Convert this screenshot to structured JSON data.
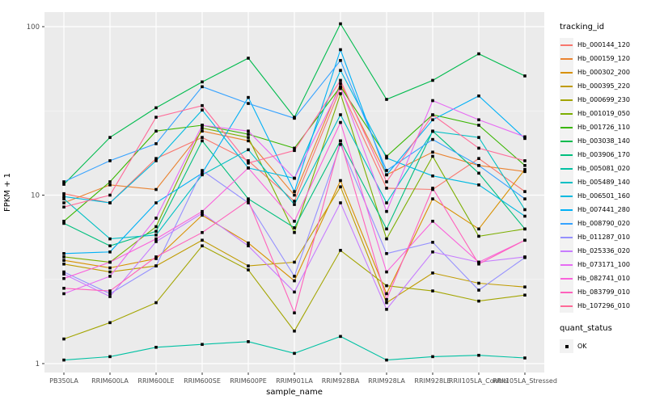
{
  "axes": {
    "x_title": "sample_name",
    "y_title": "FPKM + 1",
    "y_ticks": [
      "1",
      "10",
      "100"
    ],
    "y_tick_values": [
      1,
      10,
      100
    ],
    "y_minor_values": [
      3.162,
      31.62
    ]
  },
  "legend": {
    "tracking_title": "tracking_id",
    "quant_title": "quant_status",
    "quant_items": [
      {
        "label": "OK"
      }
    ]
  },
  "theme": {
    "panel_bg": "#ebebeb",
    "grid_major": "#ffffff",
    "grid_minor": "#f7f7f7",
    "axis_text": "#4d4d4d",
    "tick_color": "#333333",
    "point_color": "#000000",
    "swatch_bg": "#f2f2f2"
  },
  "chart_data": {
    "type": "line",
    "title": "",
    "xlabel": "sample_name",
    "ylabel": "FPKM + 1",
    "y_scale": "log10",
    "ylim": [
      1,
      120
    ],
    "grid": true,
    "legend_position": "right",
    "point_marker": "filled-square",
    "categories": [
      "PB350LA",
      "RRIM600LA",
      "RRIM600LE",
      "RRIM600SE",
      "RRIM600PE",
      "RRIM901LA",
      "RRIM928BA",
      "RRIM928LA",
      "RRIM928LE",
      "RRII105LA_Control",
      "RRII105LA_Stressed"
    ],
    "series": [
      {
        "name": "Hb_000144_120",
        "color": "#F8766D",
        "values": [
          10.2,
          9.0,
          16.5,
          22,
          16,
          9.2,
          43,
          11.0,
          10.8,
          16.5,
          10.5
        ]
      },
      {
        "name": "Hb_000159_120",
        "color": "#EA8331",
        "values": [
          9.0,
          11.5,
          10.8,
          24,
          21,
          10.0,
          46,
          13.2,
          18.0,
          15.0,
          13.8
        ]
      },
      {
        "name": "Hb_000302_200",
        "color": "#D89000",
        "values": [
          4.1,
          3.7,
          4.2,
          7.6,
          5.2,
          3.1,
          12.2,
          2.6,
          9.5,
          6.3,
          14.2
        ]
      },
      {
        "name": "Hb_000395_220",
        "color": "#C09B00",
        "values": [
          3.9,
          3.5,
          3.8,
          5.4,
          3.8,
          4.0,
          11.2,
          2.3,
          3.45,
          3.0,
          2.85
        ]
      },
      {
        "name": "Hb_000699_230",
        "color": "#A3A500",
        "values": [
          1.4,
          1.75,
          2.3,
          5.0,
          3.6,
          1.56,
          4.7,
          2.9,
          2.7,
          2.35,
          2.55
        ]
      },
      {
        "name": "Hb_001019_050",
        "color": "#7CAE00",
        "values": [
          4.3,
          4.0,
          6.5,
          25,
          22,
          6.0,
          40,
          5.5,
          17,
          5.7,
          6.3
        ]
      },
      {
        "name": "Hb_001726_110",
        "color": "#39B600",
        "values": [
          7.0,
          12.0,
          24,
          26,
          23,
          19,
          44,
          17,
          30,
          26,
          15
        ]
      },
      {
        "name": "Hb_003038_140",
        "color": "#00BB4E",
        "values": [
          11.6,
          22,
          33,
          47,
          65,
          29,
          104,
          37,
          48,
          69,
          51
        ]
      },
      {
        "name": "Hb_003906_170",
        "color": "#00BF7D",
        "values": [
          6.8,
          5.0,
          6.1,
          21,
          9.5,
          6.4,
          21,
          6.3,
          24,
          13.5,
          6.3
        ]
      },
      {
        "name": "Hb_005081_020",
        "color": "#00C1A3",
        "values": [
          1.05,
          1.1,
          1.25,
          1.3,
          1.35,
          1.15,
          1.45,
          1.05,
          1.1,
          1.12,
          1.08
        ]
      },
      {
        "name": "Hb_005489_140",
        "color": "#00BFC4",
        "values": [
          9.5,
          5.5,
          5.8,
          13.2,
          18.6,
          8.8,
          30,
          9.0,
          23.9,
          22,
          8.2
        ]
      },
      {
        "name": "Hb_006501_160",
        "color": "#00BAE0",
        "values": [
          9.8,
          9.0,
          16,
          32,
          14.5,
          12.6,
          55,
          16.6,
          13.0,
          11.5,
          7.5
        ]
      },
      {
        "name": "Hb_007441_280",
        "color": "#00B0F6",
        "values": [
          4.5,
          4.6,
          9.0,
          13.5,
          38,
          10.5,
          73,
          13.2,
          28,
          38.8,
          21.7
        ]
      },
      {
        "name": "Hb_008790_020",
        "color": "#35A2FF",
        "values": [
          12.0,
          16.0,
          20.2,
          44,
          35,
          28.6,
          63,
          14.0,
          21.4,
          15.0,
          9.5
        ]
      },
      {
        "name": "Hb_011287_010",
        "color": "#9590FF",
        "values": [
          3.5,
          2.6,
          3.8,
          14,
          9.0,
          3.3,
          20,
          4.5,
          5.25,
          2.73,
          4.26
        ]
      },
      {
        "name": "Hb_025336_020",
        "color": "#C77CFF",
        "values": [
          3.4,
          2.5,
          5.3,
          7.8,
          5.0,
          2.66,
          9.0,
          2.1,
          4.6,
          4.0,
          4.3
        ]
      },
      {
        "name": "Hb_073171_100",
        "color": "#E76BF3",
        "values": [
          2.6,
          3.3,
          7.3,
          26,
          24,
          12.6,
          44,
          8.0,
          36.4,
          28,
          22.2
        ]
      },
      {
        "name": "Hb_082741_010",
        "color": "#FA62DB",
        "values": [
          3.2,
          4.0,
          5.5,
          8.0,
          14.5,
          7.0,
          27,
          3.5,
          7.0,
          4.0,
          5.4
        ]
      },
      {
        "name": "Hb_083799_010",
        "color": "#FF62BC",
        "values": [
          2.8,
          2.7,
          4.3,
          6.0,
          9.3,
          2.0,
          21,
          2.4,
          11.0,
          3.9,
          5.4
        ]
      },
      {
        "name": "Hb_107296_010",
        "color": "#FF6A98",
        "values": [
          8.5,
          10.0,
          29,
          34,
          15.5,
          18.4,
          48,
          12.0,
          29.9,
          19,
          16
        ]
      }
    ]
  }
}
